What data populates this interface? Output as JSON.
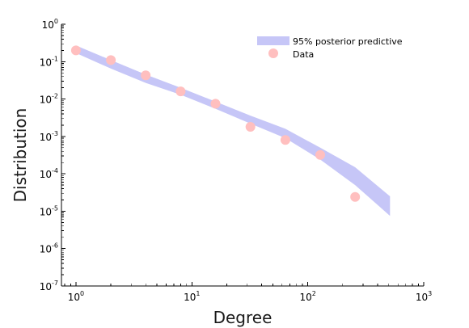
{
  "chart_data": {
    "type": "scatter",
    "xlabel": "Degree",
    "ylabel": "Distribution",
    "xscale": "log",
    "yscale": "log",
    "xlim": [
      0.75,
      1000
    ],
    "ylim": [
      1e-07,
      1
    ],
    "x_ticks": [
      {
        "base": "10",
        "exp": "0",
        "value": 1
      },
      {
        "base": "10",
        "exp": "1",
        "value": 10
      },
      {
        "base": "10",
        "exp": "2",
        "value": 100
      },
      {
        "base": "10",
        "exp": "3",
        "value": 1000
      }
    ],
    "y_ticks": [
      {
        "base": "10",
        "exp": "0",
        "value": 1
      },
      {
        "base": "10",
        "exp": "-1",
        "value": 0.1
      },
      {
        "base": "10",
        "exp": "-2",
        "value": 0.01
      },
      {
        "base": "10",
        "exp": "-3",
        "value": 0.001
      },
      {
        "base": "10",
        "exp": "-4",
        "value": 0.0001
      },
      {
        "base": "10",
        "exp": "-5",
        "value": 1e-05
      },
      {
        "base": "10",
        "exp": "-6",
        "value": 1e-06
      },
      {
        "base": "10",
        "exp": "-7",
        "value": 1e-07
      }
    ],
    "grid": false,
    "legend_position": "top-right",
    "series": [
      {
        "name": "95% posterior predictive",
        "kind": "band",
        "color": "#c6c6f7",
        "x": [
          1,
          2,
          4,
          8,
          16,
          32,
          64,
          128,
          256,
          512
        ],
        "lower": [
          0.17,
          0.065,
          0.027,
          0.013,
          0.0055,
          0.0022,
          0.0009,
          0.00024,
          5e-05,
          7.5e-06
        ],
        "upper": [
          0.27,
          0.11,
          0.045,
          0.02,
          0.0085,
          0.0036,
          0.0016,
          0.0005,
          0.00015,
          2.5e-05
        ]
      },
      {
        "name": "Data",
        "kind": "points",
        "color": "#ffbfbf",
        "x": [
          1,
          2,
          4,
          8,
          16,
          32,
          64,
          128,
          256
        ],
        "y": [
          0.2,
          0.11,
          0.043,
          0.016,
          0.0075,
          0.0018,
          0.0008,
          0.00032,
          2.4e-05
        ]
      }
    ]
  }
}
